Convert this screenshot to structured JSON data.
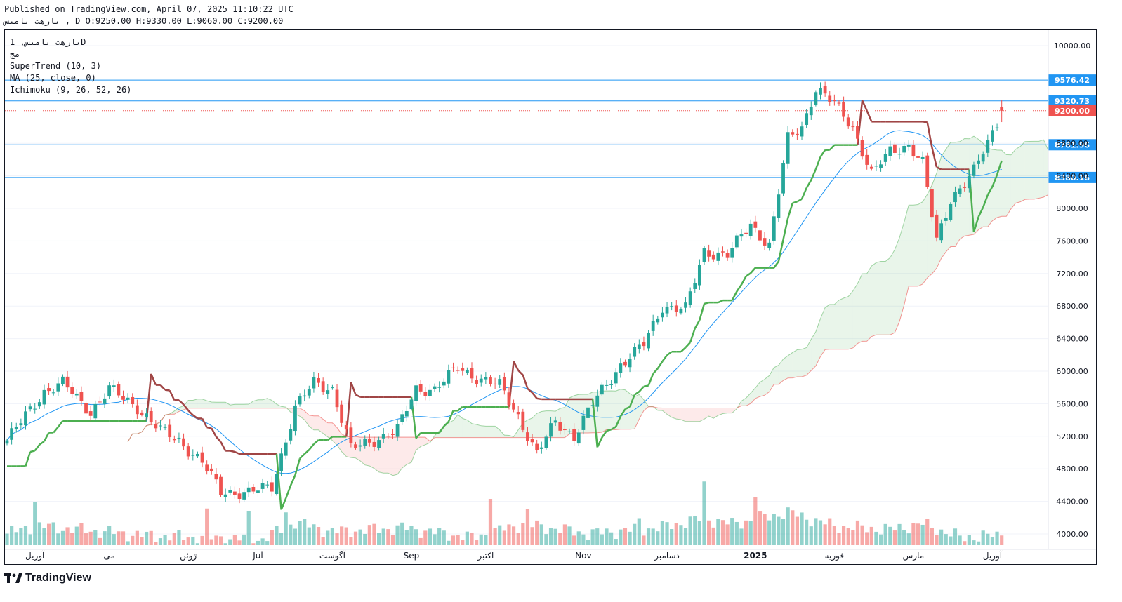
{
  "header": {
    "published": "Published on TradingView.com, April 07, 2025 11:10:22 UTC",
    "ohlc": "نارهت نامیس , D O:9250.00 H:9330.00 L:9060.00 C:9200.00"
  },
  "indicators": {
    "symbol": "نارهت نامیس, 1D",
    "exchange": "مج",
    "supertrend": "SuperTrend (10, 3)",
    "ma": "MA (25, close, 0)",
    "ichimoku": "Ichimoku (9, 26, 52, 26)"
  },
  "brand": {
    "name": "TradingView"
  },
  "colors": {
    "up": "#26a69a",
    "down": "#ef5350",
    "supertrend_up": "#4caf50",
    "supertrend_down": "#a04545",
    "ma": "#2196f3",
    "hline": "#2196f3",
    "last_price": "#ef5350"
  },
  "chart_data": {
    "type": "candlestick",
    "y_axis_ticks": [
      "4000.00",
      "4400.00",
      "4800.00",
      "5200.00",
      "5600.00",
      "6000.00",
      "6400.00",
      "6800.00",
      "7200.00",
      "7600.00",
      "8000.00",
      "8400.00",
      "8800.00",
      "10000.00"
    ],
    "x_axis_ticks": [
      {
        "label": "آوریل",
        "bold": false
      },
      {
        "label": "می",
        "bold": false
      },
      {
        "label": "ژوئن",
        "bold": false
      },
      {
        "label": "Jul",
        "bold": false
      },
      {
        "label": "آگوست",
        "bold": false
      },
      {
        "label": "Sep",
        "bold": false
      },
      {
        "label": "اکتبر",
        "bold": false
      },
      {
        "label": "Nov",
        "bold": false
      },
      {
        "label": "دسامبر",
        "bold": false
      },
      {
        "label": "2025",
        "bold": true
      },
      {
        "label": "فوریه",
        "bold": false
      },
      {
        "label": "مارس",
        "bold": false
      },
      {
        "label": "آوریل",
        "bold": false
      }
    ],
    "price_lines": [
      {
        "label": "9576.42",
        "value": 9576.42
      },
      {
        "label": "9320.73",
        "value": 9320.73
      },
      {
        "label": "8781.96",
        "value": 8781.96
      },
      {
        "label": "8380.16",
        "value": 8380.16
      }
    ],
    "last_price": {
      "label": "9200.00",
      "value": 9200
    },
    "close_anchors": [
      [
        0,
        5150
      ],
      [
        8,
        5750
      ],
      [
        12,
        5850
      ],
      [
        18,
        5500
      ],
      [
        22,
        5780
      ],
      [
        28,
        5560
      ],
      [
        33,
        5270
      ],
      [
        37,
        5150
      ],
      [
        42,
        4880
      ],
      [
        46,
        4520
      ],
      [
        52,
        4510
      ],
      [
        57,
        4580
      ],
      [
        62,
        5550
      ],
      [
        66,
        5860
      ],
      [
        70,
        5780
      ],
      [
        74,
        5050
      ],
      [
        78,
        5130
      ],
      [
        84,
        5280
      ],
      [
        88,
        5780
      ],
      [
        92,
        5780
      ],
      [
        97,
        6040
      ],
      [
        102,
        5900
      ],
      [
        106,
        5820
      ],
      [
        110,
        5450
      ],
      [
        114,
        4980
      ],
      [
        118,
        5380
      ],
      [
        122,
        5200
      ],
      [
        126,
        5600
      ],
      [
        132,
        6080
      ],
      [
        137,
        6330
      ],
      [
        141,
        6800
      ],
      [
        146,
        6760
      ],
      [
        150,
        7470
      ],
      [
        155,
        7430
      ],
      [
        160,
        7800
      ],
      [
        164,
        7550
      ],
      [
        168,
        8850
      ],
      [
        171,
        9000
      ],
      [
        174,
        9480
      ],
      [
        178,
        9280
      ],
      [
        182,
        9000
      ],
      [
        186,
        8420
      ],
      [
        190,
        8700
      ],
      [
        194,
        8780
      ],
      [
        197,
        8550
      ],
      [
        200,
        7600
      ],
      [
        203,
        8120
      ],
      [
        206,
        8310
      ],
      [
        208,
        8450
      ],
      [
        211,
        8810
      ],
      [
        214,
        9200
      ]
    ],
    "volume_anchors": [
      [
        0,
        0.3
      ],
      [
        6,
        0.5
      ],
      [
        30,
        0.25
      ],
      [
        55,
        0.15
      ],
      [
        62,
        0.6
      ],
      [
        70,
        0.35
      ],
      [
        85,
        0.45
      ],
      [
        100,
        0.2
      ],
      [
        111,
        0.55
      ],
      [
        125,
        0.3
      ],
      [
        140,
        0.45
      ],
      [
        150,
        0.7
      ],
      [
        156,
        0.55
      ],
      [
        168,
        0.85
      ],
      [
        178,
        0.5
      ],
      [
        190,
        0.4
      ],
      [
        197,
        0.55
      ],
      [
        205,
        0.2
      ],
      [
        214,
        0.25
      ]
    ],
    "spikes": [
      [
        6,
        1.12
      ],
      [
        43,
        0.95
      ],
      [
        52,
        0.88
      ],
      [
        60,
        0.85
      ],
      [
        104,
        1.2
      ],
      [
        112,
        0.93
      ],
      [
        136,
        0.7
      ],
      [
        150,
        1.65
      ],
      [
        161,
        1.25
      ]
    ]
  }
}
